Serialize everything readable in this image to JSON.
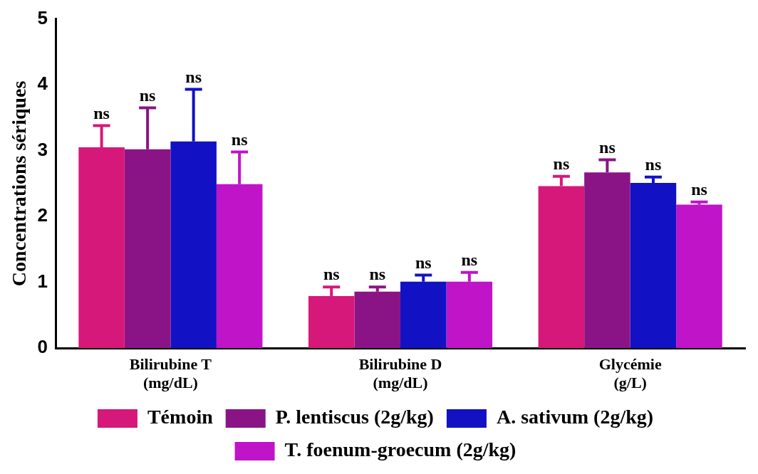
{
  "chart_data": {
    "type": "bar",
    "ylabel": "Concentrations sériques",
    "categories": [
      "Bilirubine T\n(mg/dL)",
      "Bilirubine D\n(mg/dL)",
      "Glycémie\n(g/L)"
    ],
    "series": [
      {
        "name": "Témoin",
        "color": "#d6187a",
        "values": [
          3.05,
          0.79,
          2.46
        ],
        "errors": [
          0.33,
          0.14,
          0.15
        ]
      },
      {
        "name": "P. lentiscus (2g/kg)",
        "color": "#8a1486",
        "values": [
          3.02,
          0.86,
          2.67
        ],
        "errors": [
          0.63,
          0.07,
          0.19
        ]
      },
      {
        "name": "A. sativum (2g/kg)",
        "color": "#1212c4",
        "values": [
          3.14,
          1.01,
          2.51
        ],
        "errors": [
          0.79,
          0.1,
          0.09
        ]
      },
      {
        "name": "T. foenum-groecum (2g/kg)",
        "color": "#c014c8",
        "values": [
          2.49,
          1.01,
          2.18
        ],
        "errors": [
          0.49,
          0.14,
          0.04
        ]
      }
    ],
    "ylim": [
      0,
      5
    ],
    "yticks": [
      0,
      1,
      2,
      3,
      4,
      5
    ],
    "grid": false,
    "legend": "bottom",
    "annotations": [
      "ns",
      "ns",
      "ns",
      "ns",
      "ns",
      "ns",
      "ns",
      "ns",
      "ns",
      "ns",
      "ns",
      "ns"
    ]
  }
}
